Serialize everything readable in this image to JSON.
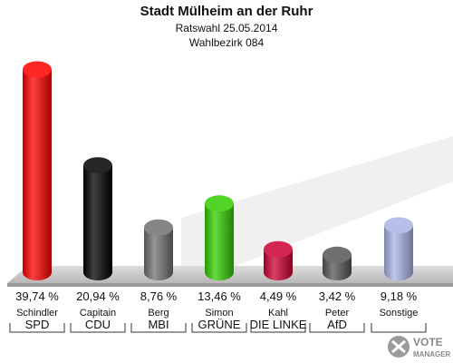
{
  "header": {
    "title": "Stadt Mülheim an der Ruhr",
    "subtitle": "Ratswahl 25.05.2014",
    "district": "Wahlbezirk 084"
  },
  "logo": {
    "line1": "VOTE",
    "line2": "MANAGER"
  },
  "colors": {
    "SPD": "#ff0000",
    "CDU": "#000000",
    "MBI": "#707070",
    "GRÜNE": "#33cc00",
    "DIE LINKE": "#cc0033",
    "AfD": "#555555",
    "Sonstige": "#a8b4e6"
  },
  "chart_data": {
    "type": "bar",
    "title": "Stadt Mülheim an der Ruhr",
    "categories": [
      "SPD",
      "CDU",
      "MBI",
      "GRÜNE",
      "DIE LINKE",
      "AfD",
      "Sonstige"
    ],
    "candidates": [
      "Schindler",
      "Capitain",
      "Berg",
      "Simon",
      "Kahl",
      "Peter",
      ""
    ],
    "values": [
      39.74,
      20.94,
      8.76,
      13.46,
      4.49,
      3.42,
      9.18
    ],
    "value_labels": [
      "39,74 %",
      "20,94 %",
      "8,76 %",
      "13,46 %",
      "4,49 %",
      "3,42 %",
      "9,18 %"
    ],
    "name_labels": [
      "Schindler",
      "Capitain",
      "Berg",
      "Simon",
      "Kahl",
      "Peter",
      "Sonstige"
    ],
    "party_labels": [
      "SPD",
      "CDU",
      "MBI",
      "GRÜNE",
      "DIE LINKE",
      "AfD",
      ""
    ],
    "ylim": [
      0,
      40
    ],
    "grid": false,
    "legend": "none"
  }
}
